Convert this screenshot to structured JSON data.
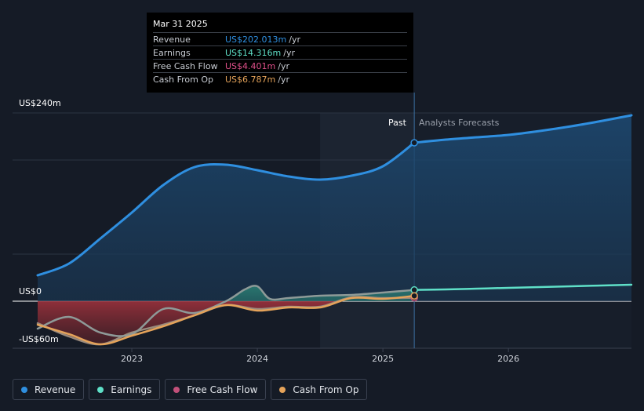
{
  "chart_data": {
    "type": "line",
    "title": "",
    "y_unit": "US$",
    "ylim": [
      -60,
      240
    ],
    "y_tick_labels": [
      "US$240m",
      "US$0",
      "-US$60m"
    ],
    "x_tick_labels": [
      "2023",
      "2024",
      "2025",
      "2026"
    ],
    "xlim": [
      2022.25,
      2026.98
    ],
    "divider_x": 2025.25,
    "past_label": "Past",
    "forecast_label": "Analysts Forecasts",
    "series": [
      {
        "name": "Revenue",
        "color": "#2f8fe0",
        "x": [
          2022.25,
          2022.5,
          2022.75,
          2023.0,
          2023.25,
          2023.5,
          2023.75,
          2024.0,
          2024.25,
          2024.5,
          2024.75,
          2025.0,
          2025.25,
          2025.5,
          2025.75,
          2026.0,
          2026.25,
          2026.5,
          2026.75,
          2026.98
        ],
        "values": [
          33,
          48,
          80,
          113,
          148,
          171,
          174,
          167,
          159,
          155,
          160,
          172,
          202.013,
          206,
          209,
          212,
          217,
          223,
          230,
          237
        ]
      },
      {
        "name": "Earnings",
        "color": "#5fe0c8",
        "x": [
          2022.25,
          2022.5,
          2022.75,
          2023.0,
          2023.25,
          2023.5,
          2023.75,
          2023.9,
          2024.0,
          2024.1,
          2024.25,
          2024.5,
          2024.75,
          2025.0,
          2025.25,
          2025.5,
          2025.75,
          2026.0,
          2026.5,
          2026.98
        ],
        "values": [
          -35,
          -20,
          -40,
          -42,
          -10,
          -15,
          0,
          15,
          19,
          3,
          4,
          7,
          8,
          11,
          14.316,
          15,
          16,
          17,
          19,
          21
        ]
      },
      {
        "name": "Free Cash Flow",
        "color": "#c2507a",
        "x": [
          2022.25,
          2022.5,
          2022.75,
          2023.0,
          2023.25,
          2023.5,
          2023.75,
          2024.0,
          2024.25,
          2024.5,
          2024.75,
          2025.0,
          2025.25
        ],
        "values": [
          -28,
          -45,
          -55,
          -40,
          -30,
          -18,
          -5,
          -10,
          -7,
          -7,
          5,
          4,
          4.401
        ]
      },
      {
        "name": "Cash From Op",
        "color": "#e5a35a",
        "x": [
          2022.25,
          2022.5,
          2022.75,
          2023.0,
          2023.25,
          2023.5,
          2023.75,
          2024.0,
          2024.25,
          2024.5,
          2024.75,
          2025.0,
          2025.25
        ],
        "values": [
          -30,
          -42,
          -55,
          -44,
          -32,
          -18,
          -5,
          -12,
          -8,
          -8,
          4,
          3,
          6.787
        ]
      }
    ]
  },
  "tooltip": {
    "date": "Mar 31 2025",
    "rows": [
      {
        "name": "Revenue",
        "value": "US$202.013m",
        "unit": "/yr",
        "color": "#2f8fe0"
      },
      {
        "name": "Earnings",
        "value": "US$14.316m",
        "unit": "/yr",
        "color": "#5fe0c8"
      },
      {
        "name": "Free Cash Flow",
        "value": "US$4.401m",
        "unit": "/yr",
        "color": "#e0508a"
      },
      {
        "name": "Cash From Op",
        "value": "US$6.787m",
        "unit": "/yr",
        "color": "#e5a35a"
      }
    ]
  },
  "legend": [
    {
      "label": "Revenue",
      "color": "#2f8fe0"
    },
    {
      "label": "Earnings",
      "color": "#5fe0c8"
    },
    {
      "label": "Free Cash Flow",
      "color": "#c2507a"
    },
    {
      "label": "Cash From Op",
      "color": "#e5a35a"
    }
  ]
}
